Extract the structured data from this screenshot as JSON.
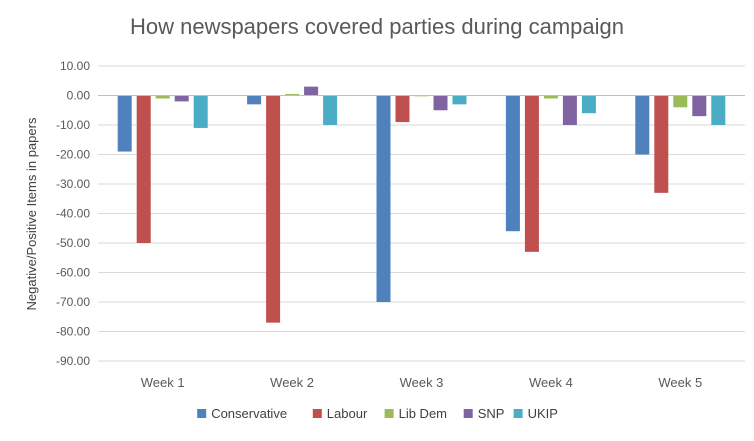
{
  "chart_data": {
    "type": "bar",
    "title": "How newspapers covered parties  during campaign",
    "xlabel": "",
    "ylabel": "Negative/Positive Items in papers",
    "ylim": [
      -90,
      10
    ],
    "yticks": [
      "10.00",
      "0.00",
      "-10.00",
      "-20.00",
      "-30.00",
      "-40.00",
      "-50.00",
      "-60.00",
      "-70.00",
      "-80.00",
      "-90.00"
    ],
    "ytick_values": [
      10,
      0,
      -10,
      -20,
      -30,
      -40,
      -50,
      -60,
      -70,
      -80,
      -90
    ],
    "grid": true,
    "legend_position": "bottom",
    "categories": [
      "Week 1",
      "Week 2",
      "Week 3",
      "Week 4",
      "Week 5"
    ],
    "series": [
      {
        "name": "Conservative",
        "color": "#4f81bd",
        "values": [
          -19,
          -3,
          -70,
          -46,
          -20
        ]
      },
      {
        "name": "Labour",
        "color": "#c0504d",
        "values": [
          -50,
          -77,
          -9,
          -53,
          -33
        ]
      },
      {
        "name": "Lib Dem",
        "color": "#9bbb59",
        "values": [
          -1,
          0.5,
          0,
          -1,
          -4
        ]
      },
      {
        "name": "SNP",
        "color": "#8064a2",
        "values": [
          -2,
          3,
          -5,
          -10,
          -7
        ]
      },
      {
        "name": "UKIP",
        "color": "#4bacc6",
        "values": [
          -11,
          -10,
          -3,
          -6,
          -10
        ]
      }
    ]
  }
}
